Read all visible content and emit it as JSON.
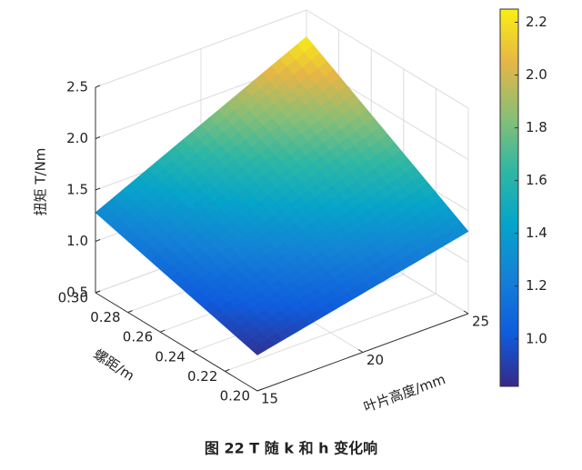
{
  "chart_data": {
    "type": "surface",
    "caption": "图 22  T 随 k 和 h 变化响",
    "zlabel": "扭矩 T/Nm",
    "xlabel": "叶片高度/mm",
    "ylabel": "螺距/m",
    "x": [
      15,
      25
    ],
    "y": [
      0.2,
      0.3
    ],
    "z": [
      [
        0.85,
        1.3
      ],
      [
        1.28,
        2.24
      ]
    ],
    "xlim": [
      15,
      25
    ],
    "ylim": [
      0.2,
      0.3
    ],
    "zlim": [
      0.5,
      2.5
    ],
    "xticks": [
      15,
      20,
      25
    ],
    "yticks": [
      {
        "value": 0.2,
        "label": "0.20"
      },
      0.22,
      0.24,
      0.26,
      0.28,
      {
        "value": 0.3,
        "label": "0.30"
      }
    ],
    "zticks": [
      0.5,
      {
        "value": 1,
        "label": "1.0"
      },
      1.5,
      {
        "value": 2,
        "label": "2.0"
      },
      2.5
    ],
    "clim": [
      0.82,
      2.25
    ],
    "cticks": [
      {
        "value": 1,
        "label": "1.0"
      },
      1.2,
      1.4,
      1.6,
      1.8,
      {
        "value": 2,
        "label": "2.0"
      },
      2.2
    ],
    "colormap": "parula",
    "grid": true
  }
}
